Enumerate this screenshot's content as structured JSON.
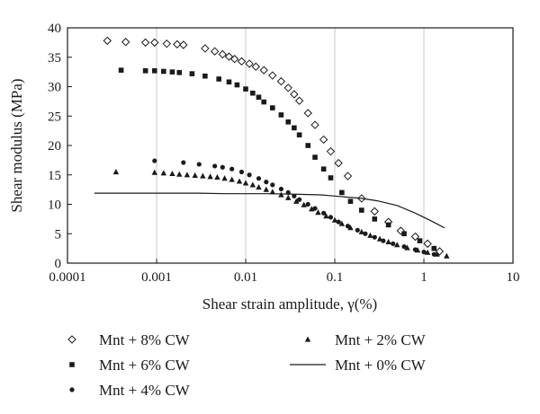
{
  "chart_data": {
    "type": "scatter",
    "title": "",
    "xlabel": "Shear strain amplitude, γ(%)",
    "ylabel": "Shear modulus (MPa)",
    "xscale": "log",
    "xlim": [
      0.0001,
      10
    ],
    "ylim": [
      0,
      40
    ],
    "x_ticks": [
      "0.0001",
      "0.001",
      "0.01",
      "0.1",
      "1",
      "10"
    ],
    "y_ticks": [
      "0",
      "5",
      "10",
      "15",
      "20",
      "25",
      "30",
      "35",
      "40"
    ],
    "grid": "vertical",
    "legend_position": "bottom",
    "series": [
      {
        "name": "Mnt + 8% CW",
        "marker": "diamond-open",
        "points": [
          [
            0.00028,
            37.8
          ],
          [
            0.00045,
            37.6
          ],
          [
            0.00075,
            37.5
          ],
          [
            0.00095,
            37.5
          ],
          [
            0.0013,
            37.3
          ],
          [
            0.0017,
            37.2
          ],
          [
            0.002,
            37.1
          ],
          [
            0.0035,
            36.5
          ],
          [
            0.0045,
            36.0
          ],
          [
            0.0055,
            35.5
          ],
          [
            0.0065,
            35.1
          ],
          [
            0.0075,
            34.7
          ],
          [
            0.009,
            34.3
          ],
          [
            0.011,
            33.9
          ],
          [
            0.013,
            33.4
          ],
          [
            0.016,
            32.8
          ],
          [
            0.02,
            31.9
          ],
          [
            0.025,
            30.9
          ],
          [
            0.03,
            29.8
          ],
          [
            0.035,
            28.7
          ],
          [
            0.04,
            27.6
          ],
          [
            0.05,
            25.5
          ],
          [
            0.06,
            23.5
          ],
          [
            0.075,
            21.0
          ],
          [
            0.09,
            19.0
          ],
          [
            0.11,
            17.0
          ],
          [
            0.14,
            14.8
          ],
          [
            0.2,
            11.0
          ],
          [
            0.28,
            8.8
          ],
          [
            0.4,
            7.0
          ],
          [
            0.55,
            5.5
          ],
          [
            0.8,
            4.5
          ],
          [
            1.1,
            3.3
          ],
          [
            1.5,
            2.0
          ]
        ]
      },
      {
        "name": "Mnt + 6% CW",
        "marker": "square",
        "points": [
          [
            0.0004,
            32.8
          ],
          [
            0.00075,
            32.7
          ],
          [
            0.00095,
            32.7
          ],
          [
            0.0012,
            32.6
          ],
          [
            0.0015,
            32.5
          ],
          [
            0.0018,
            32.4
          ],
          [
            0.0025,
            32.2
          ],
          [
            0.0035,
            31.8
          ],
          [
            0.005,
            31.3
          ],
          [
            0.0065,
            30.8
          ],
          [
            0.008,
            30.3
          ],
          [
            0.01,
            29.6
          ],
          [
            0.012,
            28.9
          ],
          [
            0.014,
            28.2
          ],
          [
            0.016,
            27.4
          ],
          [
            0.02,
            26.4
          ],
          [
            0.025,
            25.2
          ],
          [
            0.03,
            24.0
          ],
          [
            0.035,
            23.0
          ],
          [
            0.04,
            21.8
          ],
          [
            0.05,
            20.0
          ],
          [
            0.06,
            18.0
          ],
          [
            0.075,
            16.0
          ],
          [
            0.09,
            14.5
          ],
          [
            0.12,
            12.0
          ],
          [
            0.15,
            10.5
          ],
          [
            0.2,
            9.0
          ],
          [
            0.28,
            7.5
          ],
          [
            0.4,
            6.5
          ],
          [
            0.6,
            5.0
          ],
          [
            0.9,
            3.8
          ],
          [
            1.3,
            2.5
          ]
        ]
      },
      {
        "name": "Mnt + 4% CW",
        "marker": "circle",
        "points": [
          [
            0.00095,
            17.4
          ],
          [
            0.002,
            17.1
          ],
          [
            0.003,
            16.8
          ],
          [
            0.0045,
            16.5
          ],
          [
            0.0055,
            16.3
          ],
          [
            0.007,
            16.0
          ],
          [
            0.009,
            15.5
          ],
          [
            0.011,
            15.0
          ],
          [
            0.014,
            14.4
          ],
          [
            0.017,
            13.8
          ],
          [
            0.02,
            13.3
          ],
          [
            0.025,
            12.6
          ],
          [
            0.03,
            12.0
          ],
          [
            0.035,
            11.4
          ],
          [
            0.04,
            10.8
          ],
          [
            0.05,
            10.0
          ],
          [
            0.06,
            9.3
          ],
          [
            0.075,
            8.5
          ],
          [
            0.09,
            7.8
          ],
          [
            0.11,
            7.0
          ],
          [
            0.14,
            6.3
          ],
          [
            0.18,
            5.6
          ],
          [
            0.22,
            5.0
          ],
          [
            0.28,
            4.4
          ],
          [
            0.35,
            3.8
          ],
          [
            0.45,
            3.3
          ],
          [
            0.6,
            2.8
          ],
          [
            0.8,
            2.3
          ],
          [
            1.0,
            1.9
          ],
          [
            1.3,
            1.5
          ]
        ]
      },
      {
        "name": "Mnt + 2% CW",
        "marker": "triangle",
        "points": [
          [
            0.00035,
            15.5
          ],
          [
            0.00095,
            15.4
          ],
          [
            0.0012,
            15.3
          ],
          [
            0.0015,
            15.2
          ],
          [
            0.0018,
            15.1
          ],
          [
            0.0022,
            15.0
          ],
          [
            0.0027,
            14.9
          ],
          [
            0.0033,
            14.8
          ],
          [
            0.004,
            14.7
          ],
          [
            0.0048,
            14.6
          ],
          [
            0.0058,
            14.4
          ],
          [
            0.007,
            14.2
          ],
          [
            0.0085,
            13.9
          ],
          [
            0.01,
            13.6
          ],
          [
            0.012,
            13.3
          ],
          [
            0.014,
            12.9
          ],
          [
            0.017,
            12.5
          ],
          [
            0.02,
            12.1
          ],
          [
            0.025,
            11.6
          ],
          [
            0.03,
            11.1
          ],
          [
            0.037,
            10.5
          ],
          [
            0.045,
            9.9
          ],
          [
            0.055,
            9.2
          ],
          [
            0.065,
            8.6
          ],
          [
            0.08,
            8.0
          ],
          [
            0.1,
            7.3
          ],
          [
            0.12,
            6.7
          ],
          [
            0.15,
            6.0
          ],
          [
            0.2,
            5.3
          ],
          [
            0.25,
            4.7
          ],
          [
            0.32,
            4.1
          ],
          [
            0.4,
            3.6
          ],
          [
            0.5,
            3.1
          ],
          [
            0.65,
            2.6
          ],
          [
            0.85,
            2.2
          ],
          [
            1.1,
            1.8
          ],
          [
            1.4,
            1.5
          ],
          [
            1.8,
            1.2
          ]
        ]
      },
      {
        "name": "Mnt + 0% CW",
        "marker": "line",
        "points": [
          [
            0.0002,
            11.9
          ],
          [
            0.0005,
            11.9
          ],
          [
            0.001,
            11.9
          ],
          [
            0.003,
            11.9
          ],
          [
            0.006,
            11.8
          ],
          [
            0.01,
            11.8
          ],
          [
            0.02,
            11.8
          ],
          [
            0.04,
            11.7
          ],
          [
            0.07,
            11.6
          ],
          [
            0.1,
            11.4
          ],
          [
            0.2,
            11.0
          ],
          [
            0.3,
            10.6
          ],
          [
            0.5,
            9.8
          ],
          [
            0.8,
            8.5
          ],
          [
            1.2,
            7.2
          ],
          [
            1.7,
            6.0
          ]
        ]
      }
    ]
  }
}
